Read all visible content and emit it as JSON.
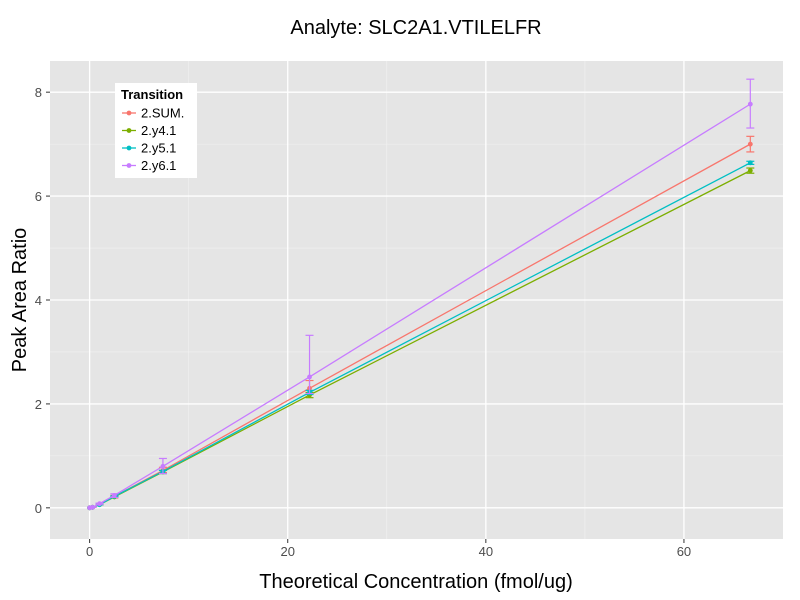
{
  "chart_data": {
    "type": "line",
    "title": "Analyte: SLC2A1.VTILELFR",
    "xlabel": "Theoretical Concentration (fmol/ug)",
    "ylabel": "Peak Area Ratio",
    "xlim": [
      -4,
      70
    ],
    "ylim": [
      -0.6,
      8.6
    ],
    "xticks": [
      0,
      20,
      40,
      60
    ],
    "yticks": [
      0,
      2,
      4,
      6,
      8
    ],
    "xtick_labels": [
      "0",
      "20",
      "40",
      "60"
    ],
    "ytick_labels": [
      "0",
      "2",
      "4",
      "6",
      "8"
    ],
    "grid": true,
    "legend": {
      "title": "Transition",
      "position": "top-left"
    },
    "x": [
      0,
      0.3,
      1,
      2.5,
      7.4,
      22.2,
      66.7
    ],
    "series": [
      {
        "name": "2.SUM.",
        "color": "#F8766D",
        "values": [
          0,
          0.01,
          0.07,
          0.22,
          0.72,
          2.3,
          7.0
        ],
        "err_low": [
          0,
          0.01,
          0.06,
          0.19,
          0.68,
          2.2,
          6.85
        ],
        "err_high": [
          0,
          0.02,
          0.08,
          0.24,
          0.78,
          2.45,
          7.15
        ]
      },
      {
        "name": "2.y4.1",
        "color": "#7CAE00",
        "values": [
          0,
          0.01,
          0.06,
          0.21,
          0.69,
          2.17,
          6.49
        ],
        "err_low": [
          0,
          0.01,
          0.06,
          0.2,
          0.66,
          2.12,
          6.44
        ],
        "err_high": [
          0,
          0.01,
          0.07,
          0.22,
          0.72,
          2.22,
          6.54
        ]
      },
      {
        "name": "2.y5.1",
        "color": "#00BFC4",
        "values": [
          0,
          0.01,
          0.06,
          0.22,
          0.7,
          2.22,
          6.64
        ],
        "err_low": [
          0,
          0.01,
          0.06,
          0.21,
          0.66,
          2.18,
          6.61
        ],
        "err_high": [
          0,
          0.01,
          0.07,
          0.23,
          0.72,
          2.26,
          6.67
        ]
      },
      {
        "name": "2.y6.1",
        "color": "#C77CFF",
        "values": [
          0,
          0.01,
          0.08,
          0.24,
          0.8,
          2.52,
          7.77
        ],
        "err_low": [
          0,
          0.01,
          0.07,
          0.2,
          0.66,
          2.2,
          7.31
        ],
        "err_high": [
          0,
          0.02,
          0.09,
          0.27,
          0.95,
          3.32,
          8.25
        ]
      }
    ]
  }
}
